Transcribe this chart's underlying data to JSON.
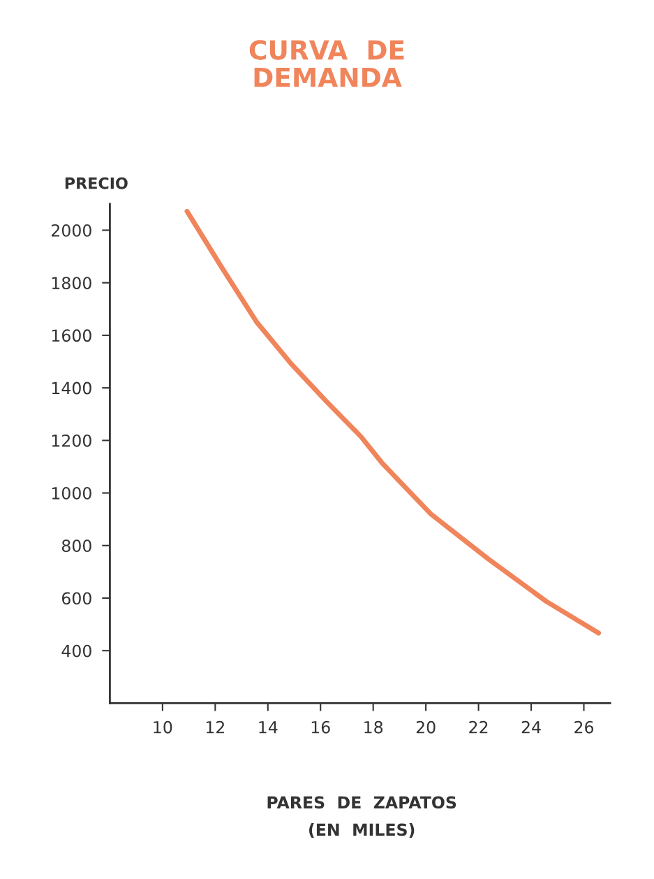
{
  "chart_data": {
    "type": "line",
    "title": "CURVA  DE\nDEMANDA",
    "ylabel": "PRECIO",
    "xlabel": "PARES  DE  ZAPATOS\n(EN  MILES)",
    "series": [
      {
        "color": "#f0845a",
        "x": [
          10.93,
          12.25,
          13.57,
          14.89,
          16.22,
          17.54,
          18.33,
          20.19,
          22.38,
          24.58,
          26.56
        ],
        "values": [
          2072,
          1858,
          1651,
          1491,
          1349,
          1214,
          1115,
          920,
          748,
          587,
          467
        ]
      }
    ],
    "xlim": [
      8,
      27
    ],
    "ylim": [
      200,
      2100
    ],
    "xticks": [
      10,
      12,
      14,
      16,
      18,
      20,
      22,
      24,
      26
    ],
    "yticks": [
      400,
      600,
      800,
      1000,
      1200,
      1400,
      1600,
      1800,
      2000
    ],
    "grid": false,
    "legend": false,
    "marker": "none",
    "line_style": "solid"
  }
}
